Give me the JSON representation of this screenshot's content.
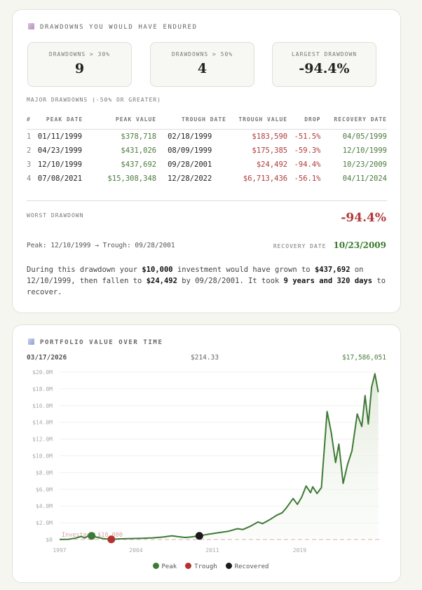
{
  "drawdowns": {
    "title": "DRAWDOWNS YOU WOULD HAVE ENDURED",
    "icon": "chart-decreasing-icon",
    "stats": [
      {
        "label": "DRAWDOWNS > 30%",
        "value": "9"
      },
      {
        "label": "DRAWDOWNS > 50%",
        "value": "4"
      },
      {
        "label": "LARGEST DRAWDOWN",
        "value": "-94.4%"
      }
    ],
    "table_title": "MAJOR DRAWDOWNS (-50% OR GREATER)",
    "columns": [
      "#",
      "PEAK DATE",
      "PEAK VALUE",
      "TROUGH DATE",
      "TROUGH VALUE",
      "DROP",
      "RECOVERY DATE"
    ],
    "rows": [
      [
        "1",
        "01/11/1999",
        "$378,718",
        "02/18/1999",
        "$183,590",
        "-51.5%",
        "04/05/1999"
      ],
      [
        "2",
        "04/23/1999",
        "$431,026",
        "08/09/1999",
        "$175,385",
        "-59.3%",
        "12/10/1999"
      ],
      [
        "3",
        "12/10/1999",
        "$437,692",
        "09/28/2001",
        "$24,492",
        "-94.4%",
        "10/23/2009"
      ],
      [
        "4",
        "07/08/2021",
        "$15,308,348",
        "12/28/2022",
        "$6,713,436",
        "-56.1%",
        "04/11/2024"
      ]
    ],
    "worst": {
      "label": "WORST DRAWDOWN",
      "value": "-94.4%",
      "range": "Peak: 12/10/1999 → Trough: 09/28/2001",
      "recovery_label": "RECOVERY DATE",
      "recovery_date": "10/23/2009"
    },
    "summary": {
      "t1": "During this drawdown your ",
      "investment": "$10,000",
      "t2": " investment would have grown to ",
      "peak": "$437,692",
      "t3": " on 12/10/1999, then fallen to ",
      "trough": "$24,492",
      "t4": " by 09/28/2001. It took ",
      "duration": "9 years and 320 days",
      "t5": " to recover."
    }
  },
  "portfolio": {
    "title": "PORTFOLIO VALUE OVER TIME",
    "icon": "chart-increasing-icon",
    "hover_date": "03/17/2026",
    "hover_price": "$214.33",
    "hover_value": "$17,586,051",
    "legend": [
      {
        "label": "Peak",
        "color": "#3e7a36"
      },
      {
        "label": "Trough",
        "color": "#b3312f"
      },
      {
        "label": "Recovered",
        "color": "#1a1a1a"
      }
    ]
  },
  "chart_data": {
    "type": "area",
    "xlabel": "",
    "ylabel": "",
    "x_ticks": [
      "1997",
      "2004",
      "2011",
      "2019"
    ],
    "y_ticks": [
      "$0",
      "$2.0M",
      "$4.0M",
      "$6.0M",
      "$8.0M",
      "$10.0M",
      "$12.0M",
      "$14.0M",
      "$16.0M",
      "$18.0M",
      "$20.0M"
    ],
    "xlim": [
      1997,
      2026.3
    ],
    "ylim": [
      0,
      20
    ],
    "y_unit": "$M",
    "line_color": "#3e7a36",
    "grid": true,
    "reference_line": {
      "label": "Invested: $10,000",
      "value": 0.01,
      "color": "#d9a0a0"
    },
    "x": [
      1997.0,
      1997.8,
      1998.5,
      1999.0,
      1999.3,
      1999.6,
      1999.94,
      2000.5,
      2001.0,
      2001.74,
      2002.5,
      2003.5,
      2004.5,
      2005.5,
      2006.5,
      2007.3,
      2007.8,
      2008.5,
      2009.0,
      2009.81,
      2010.5,
      2011.5,
      2012.5,
      2013.3,
      2013.8,
      2014.5,
      2015.2,
      2015.6,
      2016.3,
      2016.9,
      2017.4,
      2017.8,
      2018.4,
      2018.8,
      2019.2,
      2019.6,
      2020.0,
      2020.2,
      2020.6,
      2021.0,
      2021.52,
      2021.9,
      2022.3,
      2022.6,
      2022.99,
      2023.4,
      2023.8,
      2024.28,
      2024.7,
      2025.0,
      2025.3,
      2025.6,
      2025.9,
      2026.21
    ],
    "y": [
      0.01,
      0.03,
      0.18,
      0.38,
      0.18,
      0.43,
      0.44,
      0.25,
      0.12,
      0.024,
      0.08,
      0.12,
      0.15,
      0.2,
      0.3,
      0.45,
      0.35,
      0.25,
      0.3,
      0.44,
      0.6,
      0.8,
      1.0,
      1.3,
      1.2,
      1.6,
      2.1,
      1.9,
      2.4,
      2.9,
      3.2,
      3.8,
      4.9,
      4.2,
      5.1,
      6.4,
      5.6,
      6.3,
      5.5,
      6.2,
      15.3,
      12.8,
      9.2,
      11.4,
      6.7,
      9.0,
      10.6,
      15.0,
      13.5,
      17.2,
      13.8,
      18.2,
      19.8,
      17.6
    ],
    "markers": [
      {
        "type": "Peak",
        "x": 1999.94,
        "y": 0.44
      },
      {
        "type": "Trough",
        "x": 2001.74,
        "y": 0.024
      },
      {
        "type": "Recovered",
        "x": 2009.81,
        "y": 0.44
      }
    ]
  }
}
